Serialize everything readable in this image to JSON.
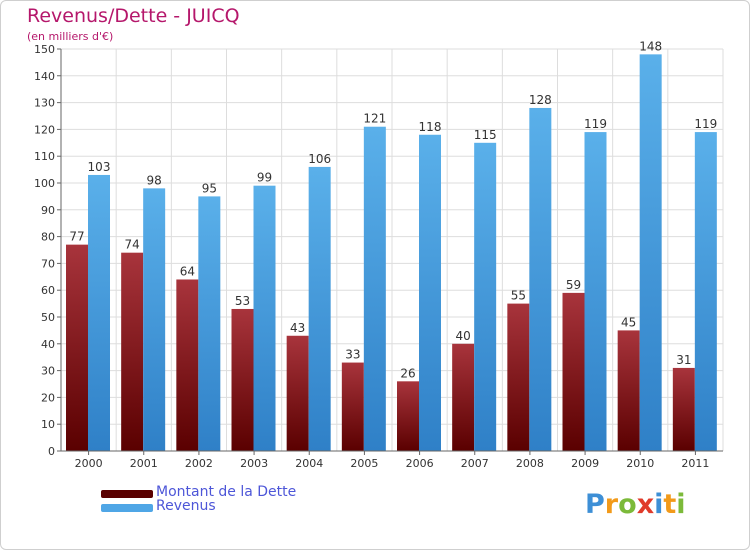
{
  "title": "Revenus/Dette - JUICQ",
  "subtitle": "(en milliers d'€)",
  "colors": {
    "dette_dark": "#5a0000",
    "dette_light": "#a8343c",
    "revenus_dark": "#2f80c7",
    "revenus_light": "#5ab0ea",
    "grid": "#dddddd",
    "axis": "#666666",
    "text": "#333333"
  },
  "chart_data": {
    "type": "bar",
    "categories": [
      "2000",
      "2001",
      "2002",
      "2003",
      "2004",
      "2005",
      "2006",
      "2007",
      "2008",
      "2009",
      "2010",
      "2011"
    ],
    "series": [
      {
        "name": "Montant de la Dette",
        "values": [
          77,
          74,
          64,
          53,
          43,
          33,
          26,
          40,
          55,
          59,
          45,
          31
        ]
      },
      {
        "name": "Revenus",
        "values": [
          103,
          98,
          95,
          99,
          106,
          121,
          118,
          115,
          128,
          119,
          148,
          119
        ]
      }
    ],
    "ylim": [
      0,
      150
    ],
    "yticks": [
      0,
      10,
      20,
      30,
      40,
      50,
      60,
      70,
      80,
      90,
      100,
      110,
      120,
      130,
      140,
      150
    ],
    "grid": true,
    "legend": "bottom-left"
  },
  "legend": {
    "items": [
      {
        "label": "Montant de la Dette",
        "color": "#5a0000"
      },
      {
        "label": "Revenus",
        "color": "#4fa6e6"
      }
    ]
  },
  "logo": {
    "text": "Proxiti",
    "letters": [
      "P",
      "r",
      "o",
      "x",
      "i",
      "t",
      "i"
    ],
    "letter_colors": [
      "#3d8fd6",
      "#f29a1a",
      "#7cba3a",
      "#e03a2a",
      "#3d8fd6",
      "#f29a1a",
      "#7cba3a"
    ]
  }
}
